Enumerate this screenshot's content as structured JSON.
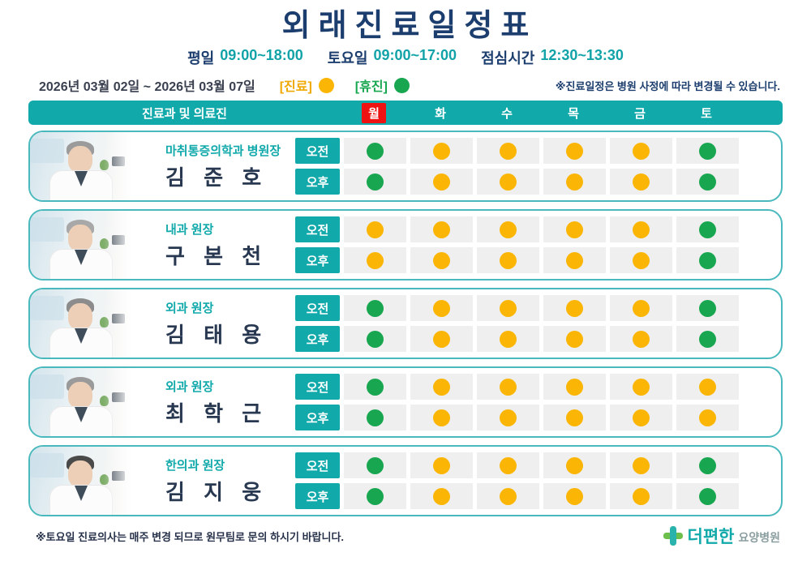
{
  "page": {
    "title": "외래진료일정표",
    "hours": [
      {
        "label": "평일",
        "value": "09:00~18:00"
      },
      {
        "label": "토요일",
        "value": "09:00~17:00"
      },
      {
        "label": "점심시간",
        "value": "12:30~13:30"
      }
    ],
    "date_range": "2026년 03월 02일 ~ 2026년 03월 07일",
    "legend": [
      {
        "label": "[진료]",
        "status": "open"
      },
      {
        "label": "[휴진]",
        "status": "closed"
      }
    ],
    "notice": "※진료일정은 병원 사정에 따라 변경될 수 있습니다.",
    "footer_note": "※토요일 진료의사는 매주 변경 되므로 원무팀로 문의 하시기 바랍니다.",
    "logo": {
      "name": "더편한",
      "suffix": "요양병원"
    }
  },
  "table": {
    "first_header": "진료과 및 의료진",
    "days": [
      {
        "key": "mon",
        "label": "월",
        "highlight": true
      },
      {
        "key": "tue",
        "label": "화",
        "highlight": false
      },
      {
        "key": "wed",
        "label": "수",
        "highlight": false
      },
      {
        "key": "thu",
        "label": "목",
        "highlight": false
      },
      {
        "key": "fri",
        "label": "금",
        "highlight": false
      },
      {
        "key": "sat",
        "label": "토",
        "highlight": false
      }
    ],
    "session_labels": [
      "오전",
      "오후"
    ],
    "rows": [
      {
        "dept": "마취통증의학과 병원장",
        "name": "김 준 호",
        "avatar_hair": "#9b9b9b",
        "am": [
          "closed",
          "open",
          "open",
          "open",
          "open",
          "closed"
        ],
        "pm": [
          "closed",
          "open",
          "open",
          "open",
          "open",
          "closed"
        ]
      },
      {
        "dept": "내과 원장",
        "name": "구 본 천",
        "avatar_hair": "#a8a8a8",
        "am": [
          "open",
          "open",
          "open",
          "open",
          "open",
          "closed"
        ],
        "pm": [
          "open",
          "open",
          "open",
          "open",
          "open",
          "closed"
        ]
      },
      {
        "dept": "외과 원장",
        "name": "김 태 용",
        "avatar_hair": "#8c8c8c",
        "am": [
          "closed",
          "open",
          "open",
          "open",
          "open",
          "closed"
        ],
        "pm": [
          "closed",
          "open",
          "open",
          "open",
          "open",
          "closed"
        ]
      },
      {
        "dept": "외과 원장",
        "name": "최 학 근",
        "avatar_hair": "#9a9a9a",
        "am": [
          "closed",
          "open",
          "open",
          "open",
          "open",
          "open"
        ],
        "pm": [
          "closed",
          "open",
          "open",
          "open",
          "open",
          "open"
        ]
      },
      {
        "dept": "한의과 원장",
        "name": "김 지 웅",
        "avatar_hair": "#4a4a4a",
        "am": [
          "closed",
          "open",
          "open",
          "open",
          "open",
          "closed"
        ],
        "pm": [
          "closed",
          "open",
          "open",
          "open",
          "open",
          "closed"
        ]
      }
    ]
  },
  "colors": {
    "open": "#fbb504",
    "closed": "#18a750",
    "teal": "#12a9ab",
    "navy": "#1c3e6e",
    "highlight_red": "#ef1212"
  }
}
